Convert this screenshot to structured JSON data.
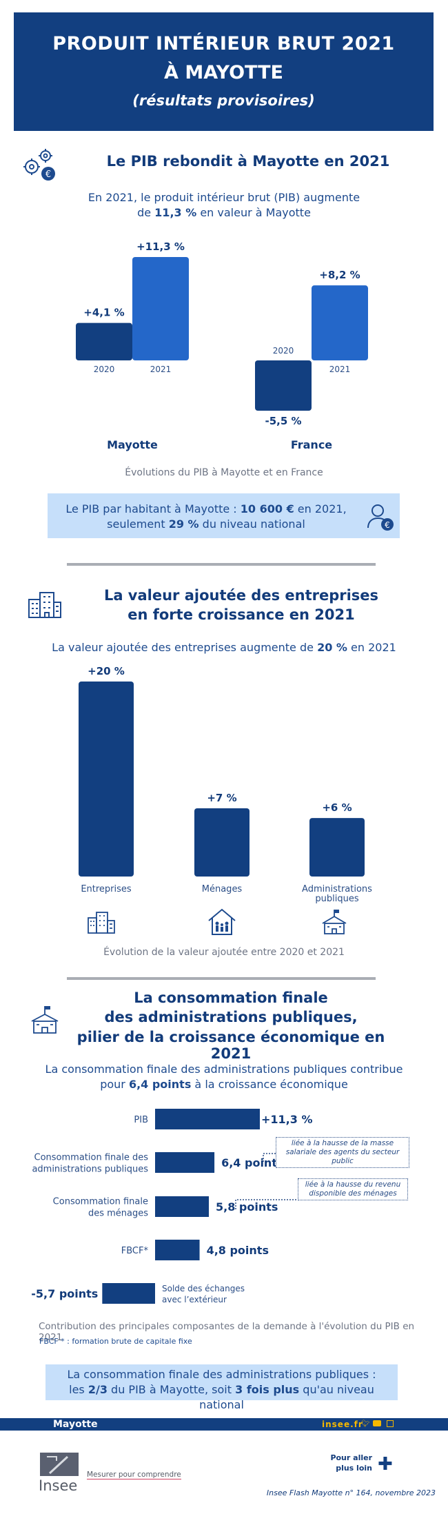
{
  "header": {
    "line1": "PRODUIT INTÉRIEUR BRUT 2021",
    "line2": "À MAYOTTE",
    "subtitle": "(résultats provisoires)"
  },
  "section1": {
    "title": "Le PIB rebondit à Mayotte en 2021",
    "lead_a": "En 2021, le produit intérieur brut (PIB) augmente",
    "lead_b_pre": "de ",
    "lead_b_bold": "11,3 %",
    "lead_b_post": " en valeur à Mayotte",
    "chart_caption": "Évolutions du PIB à Mayotte et en France",
    "callout_a_pre": "Le PIB par habitant à Mayotte : ",
    "callout_a_bold": "10 600 €",
    "callout_a_post": " en 2021,",
    "callout_b_pre": "seulement ",
    "callout_b_bold": "29 %",
    "callout_b_post": " du niveau national"
  },
  "section2": {
    "title_a": "La valeur ajoutée des entreprises",
    "title_b": "en forte croissance en 2021",
    "lead_pre": "La valeur ajoutée des entreprises augmente de ",
    "lead_bold": "20 %",
    "lead_post": " en 2021",
    "chart_caption": "Évolution de la valeur ajoutée entre 2020 et 2021"
  },
  "section3": {
    "title_a": "La consommation finale",
    "title_b": "des administrations publiques,",
    "title_c": "pilier de la croissance économique en 2021",
    "lead_a": "La consommation finale des administrations publiques contribue",
    "lead_b_pre": "pour ",
    "lead_b_bold": "6,4 points",
    "lead_b_post": " à la croissance économique",
    "note1": "liée à la hausse de la masse salariale des agents du secteur public",
    "note2": "liée à la hausse du revenu disponible des ménages",
    "chart_caption": "Contribution des principales composantes de la demande à l'évolution du PIB en 2021",
    "footnote": "FBCF * : formation brute de capitale fixe",
    "callout_a": "La consommation finale des administrations publiques :",
    "callout_b_pre": "les ",
    "callout_b_bold1": "2/3",
    "callout_b_mid": " du PIB à Mayotte, soit ",
    "callout_b_bold2": "3 fois plus",
    "callout_b_post": " qu'au niveau national"
  },
  "footer": {
    "region": "Mayotte",
    "site": "insee.fr",
    "tagline": "Mesurer pour comprendre",
    "logo_text": "Insee",
    "more": "Pour aller plus loin",
    "reference": "Insee Flash Mayotte n° 164, novembre 2023"
  },
  "colors": {
    "dark_blue": "#123f80",
    "mid_blue": "#2467c9",
    "light_blue": "#c6dffa",
    "grey": "#a9adb4"
  },
  "chart_data": [
    {
      "type": "bar",
      "title": "Évolutions du PIB à Mayotte et en France",
      "groups": [
        "Mayotte",
        "France"
      ],
      "categories": [
        "2020",
        "2021"
      ],
      "series": [
        {
          "name": "Mayotte",
          "values": [
            4.1,
            11.3
          ],
          "labels": [
            "+4,1 %",
            "+11,3 %"
          ]
        },
        {
          "name": "France",
          "values": [
            -5.5,
            8.2
          ],
          "labels": [
            "-5,5 %",
            "+8,2 %"
          ]
        }
      ],
      "unit": "%"
    },
    {
      "type": "bar",
      "title": "Évolution de la valeur ajoutée entre 2020 et 2021",
      "categories": [
        "Entreprises",
        "Ménages",
        "Administrations publiques"
      ],
      "values": [
        20,
        7,
        6
      ],
      "labels": [
        "+20 %",
        "+7 %",
        "+6 %"
      ],
      "unit": "%"
    },
    {
      "type": "bar",
      "orientation": "horizontal",
      "title": "Contribution des principales composantes de la demande à l'évolution du PIB en 2021",
      "categories": [
        "PIB",
        "Consommation finale des administrations publiques",
        "Consommation finale des ménages",
        "FBCF*",
        "Solde des échanges avec l'extérieur"
      ],
      "values": [
        11.3,
        6.4,
        5.8,
        4.8,
        -5.7
      ],
      "labels": [
        "+11,3 %",
        "6,4 points",
        "5,8 points",
        "4,8 points",
        "-5,7 points"
      ]
    }
  ]
}
